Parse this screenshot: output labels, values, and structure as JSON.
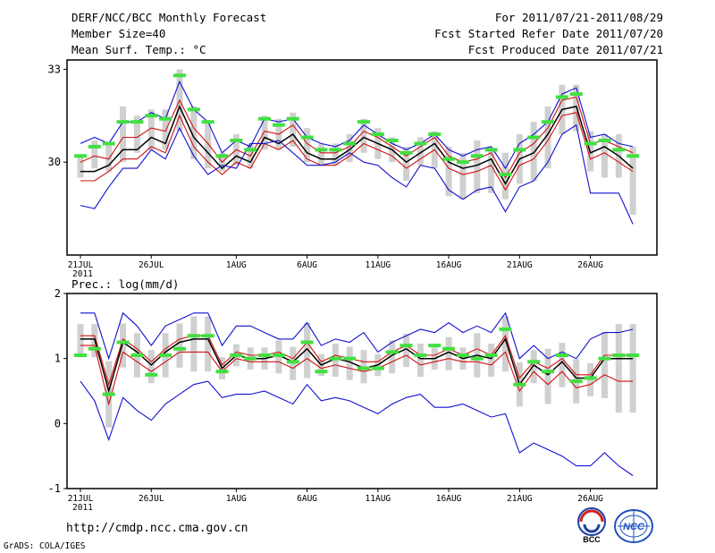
{
  "header": {
    "title": "DERF/NCC/BCC Monthly Forecast",
    "member_size": "Member Size=40",
    "variable": "Mean Surf. Temp.: °C",
    "period": "For 2011/07/21-2011/08/29",
    "started": "Fcst Started Refer Date 2011/07/20",
    "produced": "Fcst Produced Date 2011/07/21"
  },
  "footer": {
    "url": "http://cmdp.ncc.cma.gov.cn",
    "grads": "GrADS: COLA/IGES"
  },
  "logos": {
    "bcc": "BCC",
    "ncc": "NCC"
  },
  "colors": {
    "ensemble_mean": "#000000",
    "spread_inner": "#d01010",
    "spread_outer": "#1010d0",
    "member_bar": "#d0d0d0",
    "median_marker": "#40e040"
  },
  "chart_data": [
    {
      "type": "line",
      "title": "Mean Surf. Temp.: °C",
      "xlabel": "",
      "ylabel": "",
      "x_ticks": [
        "21JUL\n2011",
        "26JUL",
        "1AUG",
        "6AUG",
        "11AUG",
        "16AUG",
        "21AUG",
        "26AUG"
      ],
      "x_tick_days": [
        0,
        5,
        11,
        16,
        21,
        26,
        31,
        36
      ],
      "days": 40,
      "ylim": [
        27,
        33.3
      ],
      "y_ticks": [
        30,
        33
      ],
      "series": [
        {
          "name": "max",
          "values": [
            30.6,
            30.8,
            30.6,
            31.3,
            31.3,
            31.6,
            31.4,
            32.6,
            31.7,
            31.3,
            30.3,
            30.7,
            30.5,
            31.4,
            31.3,
            31.4,
            30.8,
            30.6,
            30.5,
            30.7,
            31.2,
            30.9,
            30.6,
            30.4,
            30.6,
            30.9,
            30.4,
            30.2,
            30.4,
            30.5,
            29.8,
            30.6,
            30.9,
            31.3,
            32.2,
            32.4,
            30.8,
            30.9,
            30.6,
            30.5
          ]
        },
        {
          "name": "upper",
          "values": [
            30.0,
            30.2,
            30.1,
            30.8,
            30.8,
            31.1,
            31.0,
            32.0,
            31.1,
            30.6,
            30.0,
            30.4,
            30.2,
            31.0,
            30.9,
            31.2,
            30.6,
            30.3,
            30.3,
            30.5,
            31.0,
            30.8,
            30.5,
            30.2,
            30.5,
            30.8,
            30.2,
            30.0,
            30.1,
            30.3,
            29.5,
            30.3,
            30.6,
            31.1,
            32.0,
            32.1,
            30.6,
            30.7,
            30.5,
            30.3
          ]
        },
        {
          "name": "mean",
          "values": [
            29.7,
            29.7,
            29.9,
            30.4,
            30.4,
            30.8,
            30.6,
            31.8,
            30.8,
            30.3,
            29.8,
            30.2,
            30.0,
            30.8,
            30.6,
            30.9,
            30.3,
            30.1,
            30.1,
            30.4,
            30.8,
            30.6,
            30.4,
            30.0,
            30.3,
            30.6,
            30.0,
            29.8,
            29.9,
            30.1,
            29.3,
            30.1,
            30.3,
            30.9,
            31.7,
            31.8,
            30.3,
            30.5,
            30.2,
            29.8
          ]
        },
        {
          "name": "lower",
          "values": [
            29.4,
            29.4,
            29.7,
            30.1,
            30.1,
            30.5,
            30.3,
            31.5,
            30.5,
            30.0,
            29.6,
            30.0,
            29.8,
            30.6,
            30.4,
            30.7,
            30.1,
            29.9,
            29.9,
            30.2,
            30.6,
            30.4,
            30.2,
            29.8,
            30.1,
            30.4,
            29.8,
            29.6,
            29.7,
            29.9,
            29.1,
            29.9,
            30.1,
            30.7,
            31.5,
            31.6,
            30.1,
            30.3,
            30.0,
            29.7
          ]
        },
        {
          "name": "min",
          "values": [
            28.6,
            28.5,
            29.2,
            29.8,
            29.8,
            30.4,
            30.1,
            31.1,
            30.2,
            29.6,
            29.9,
            29.8,
            30.6,
            30.6,
            30.7,
            30.3,
            29.9,
            29.9,
            30.0,
            30.3,
            30.0,
            29.9,
            29.5,
            29.2,
            29.9,
            29.8,
            29.1,
            28.8,
            29.1,
            29.2,
            28.4,
            29.2,
            29.4,
            30.0,
            30.9,
            31.2,
            29.0,
            29.0,
            29.0,
            28.0
          ]
        }
      ],
      "medians": [
        30.2,
        30.5,
        30.6,
        31.3,
        31.3,
        31.5,
        31.4,
        32.8,
        31.7,
        31.3,
        30.2,
        30.7,
        30.4,
        31.4,
        31.2,
        31.4,
        30.8,
        30.4,
        30.4,
        30.6,
        31.3,
        30.9,
        30.7,
        30.3,
        30.6,
        30.9,
        30.1,
        30.0,
        30.2,
        30.4,
        29.6,
        30.4,
        30.8,
        31.3,
        32.1,
        32.2,
        30.6,
        30.7,
        30.4,
        30.2
      ],
      "bars": [
        [
          29.5,
          30.2
        ],
        [
          29.8,
          30.7
        ],
        [
          29.7,
          30.6
        ],
        [
          30.0,
          31.8
        ],
        [
          30.3,
          31.5
        ],
        [
          30.4,
          31.7
        ],
        [
          30.4,
          31.7
        ],
        [
          31.0,
          33.0
        ],
        [
          30.1,
          31.8
        ],
        [
          29.8,
          31.3
        ],
        [
          29.7,
          30.3
        ],
        [
          29.9,
          30.9
        ],
        [
          29.8,
          30.6
        ],
        [
          30.4,
          31.5
        ],
        [
          30.4,
          31.4
        ],
        [
          30.5,
          31.6
        ],
        [
          30.0,
          31.1
        ],
        [
          29.9,
          30.6
        ],
        [
          29.9,
          30.6
        ],
        [
          30.0,
          30.9
        ],
        [
          30.3,
          31.4
        ],
        [
          30.1,
          31.1
        ],
        [
          30.0,
          30.8
        ],
        [
          29.4,
          30.5
        ],
        [
          29.9,
          30.8
        ],
        [
          29.8,
          31.0
        ],
        [
          28.9,
          30.5
        ],
        [
          28.8,
          30.3
        ],
        [
          29.0,
          30.7
        ],
        [
          29.0,
          30.4
        ],
        [
          28.8,
          30.3
        ],
        [
          29.3,
          30.9
        ],
        [
          29.4,
          31.3
        ],
        [
          29.8,
          31.8
        ],
        [
          30.9,
          32.5
        ],
        [
          31.0,
          32.5
        ],
        [
          29.7,
          31.0
        ],
        [
          29.5,
          30.9
        ],
        [
          29.5,
          30.9
        ],
        [
          28.3,
          30.5
        ]
      ]
    },
    {
      "type": "line",
      "title": "Prec.: log(mm/d)",
      "xlabel": "",
      "ylabel": "",
      "x_ticks": [
        "21JUL\n2011",
        "26JUL",
        "1AUG",
        "6AUG",
        "11AUG",
        "16AUG",
        "21AUG",
        "26AUG"
      ],
      "x_tick_days": [
        0,
        5,
        11,
        16,
        21,
        26,
        31,
        36
      ],
      "days": 40,
      "ylim": [
        -1,
        2
      ],
      "y_ticks": [
        -1,
        0,
        1,
        2
      ],
      "series": [
        {
          "name": "max",
          "values": [
            1.7,
            1.7,
            1.0,
            1.7,
            1.5,
            1.2,
            1.5,
            1.6,
            1.7,
            1.7,
            1.2,
            1.5,
            1.5,
            1.4,
            1.3,
            1.3,
            1.55,
            1.2,
            1.3,
            1.25,
            1.4,
            1.1,
            1.25,
            1.35,
            1.45,
            1.4,
            1.55,
            1.4,
            1.5,
            1.4,
            1.7,
            1.0,
            1.2,
            1.0,
            1.1,
            1.0,
            1.3,
            1.4,
            1.4,
            1.45
          ]
        },
        {
          "name": "upper",
          "values": [
            1.35,
            1.35,
            0.6,
            1.3,
            1.15,
            0.95,
            1.15,
            1.3,
            1.35,
            1.35,
            0.9,
            1.1,
            1.05,
            1.05,
            1.1,
            1.0,
            1.25,
            0.95,
            1.05,
            1.0,
            0.95,
            0.95,
            1.1,
            1.2,
            1.05,
            1.05,
            1.15,
            1.05,
            1.15,
            1.05,
            1.35,
            0.7,
            0.95,
            0.85,
            1.0,
            0.75,
            0.75,
            1.05,
            1.05,
            1.05
          ]
        },
        {
          "name": "mean",
          "values": [
            1.3,
            1.3,
            0.5,
            1.25,
            1.1,
            0.9,
            1.1,
            1.25,
            1.3,
            1.3,
            0.85,
            1.05,
            1.0,
            1.0,
            1.05,
            0.95,
            1.15,
            0.9,
            1.0,
            0.95,
            0.85,
            0.9,
            1.05,
            1.15,
            1.0,
            1.0,
            1.1,
            1.0,
            1.05,
            1.0,
            1.3,
            0.6,
            0.9,
            0.75,
            0.95,
            0.7,
            0.7,
            1.0,
            1.0,
            1.0
          ]
        },
        {
          "name": "lower",
          "values": [
            1.2,
            1.2,
            0.3,
            1.1,
            0.95,
            0.8,
            0.95,
            1.1,
            1.1,
            1.1,
            0.8,
            1.0,
            0.95,
            0.95,
            0.95,
            0.85,
            1.0,
            0.85,
            0.9,
            0.85,
            0.8,
            0.85,
            0.95,
            1.05,
            0.9,
            0.95,
            1.0,
            0.95,
            0.95,
            0.9,
            1.1,
            0.5,
            0.8,
            0.6,
            0.8,
            0.55,
            0.6,
            0.75,
            0.65,
            0.65
          ]
        },
        {
          "name": "min",
          "values": [
            0.65,
            0.35,
            -0.25,
            0.4,
            0.2,
            0.05,
            0.3,
            0.45,
            0.6,
            0.65,
            0.4,
            0.45,
            0.45,
            0.5,
            0.4,
            0.3,
            0.6,
            0.35,
            0.4,
            0.35,
            0.25,
            0.15,
            0.3,
            0.4,
            0.45,
            0.25,
            0.25,
            0.3,
            0.2,
            0.1,
            0.15,
            -0.45,
            -0.3,
            -0.4,
            -0.5,
            -0.65,
            -0.65,
            -0.45,
            -0.65,
            -0.8
          ]
        }
      ],
      "medians": [
        1.05,
        1.15,
        0.45,
        1.25,
        1.05,
        0.75,
        1.05,
        1.15,
        1.35,
        1.35,
        0.8,
        1.05,
        1.0,
        1.05,
        1.05,
        0.95,
        1.25,
        0.8,
        1.0,
        1.0,
        0.85,
        0.85,
        1.1,
        1.2,
        1.05,
        1.2,
        1.15,
        1.05,
        1.0,
        1.05,
        1.45,
        0.6,
        0.95,
        0.8,
        1.05,
        0.65,
        0.7,
        1.0,
        1.05,
        1.05
      ]
    }
  ]
}
